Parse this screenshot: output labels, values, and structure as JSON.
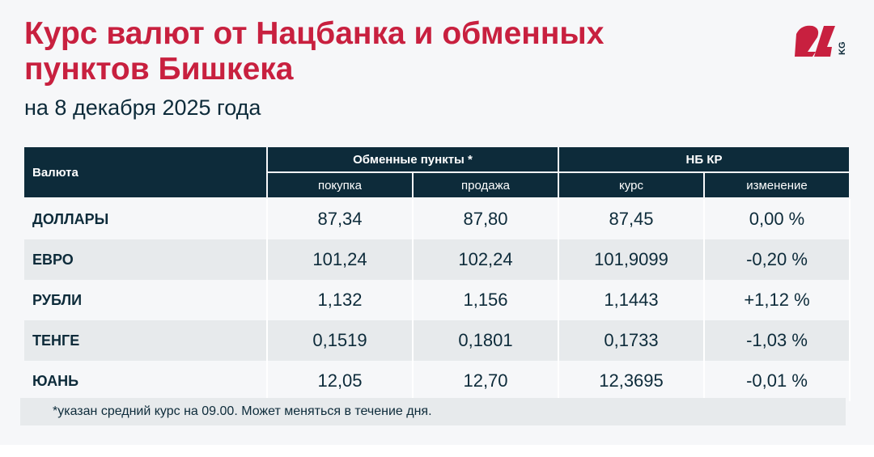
{
  "title": "Курс валют от Нацбанка и обменных пунктов Бишкека",
  "subtitle": "на 8 декабря 2025 года",
  "logo": {
    "text": "24",
    "suffix": "KG",
    "color": "#c8203f"
  },
  "table": {
    "col_currency": "Валюта",
    "group_exchange": "Обменные пункты *",
    "group_nb": "НБ КР",
    "sub_buy": "покупка",
    "sub_sell": "продажа",
    "sub_rate": "курс",
    "sub_change": "изменение",
    "rows": [
      {
        "name": "ДОЛЛАРЫ",
        "buy": "87,34",
        "sell": "87,80",
        "rate": "87,45",
        "change": "0,00 %"
      },
      {
        "name": "ЕВРО",
        "buy": "101,24",
        "sell": "102,24",
        "rate": "101,9099",
        "change": "-0,20 %"
      },
      {
        "name": "РУБЛИ",
        "buy": "1,132",
        "sell": "1,156",
        "rate": "1,1443",
        "change": "+1,12 %"
      },
      {
        "name": "ТЕНГЕ",
        "buy": "0,1519",
        "sell": "0,1801",
        "rate": "0,1733",
        "change": "-1,03 %"
      },
      {
        "name": "ЮАНЬ",
        "buy": "12,05",
        "sell": "12,70",
        "rate": "12,3695",
        "change": "-0,01 %"
      }
    ]
  },
  "footnote": "*указан средний курс на 09.00. Может меняться в течение дня.",
  "colors": {
    "accent": "#c8203f",
    "header": "#0d2b3a"
  }
}
